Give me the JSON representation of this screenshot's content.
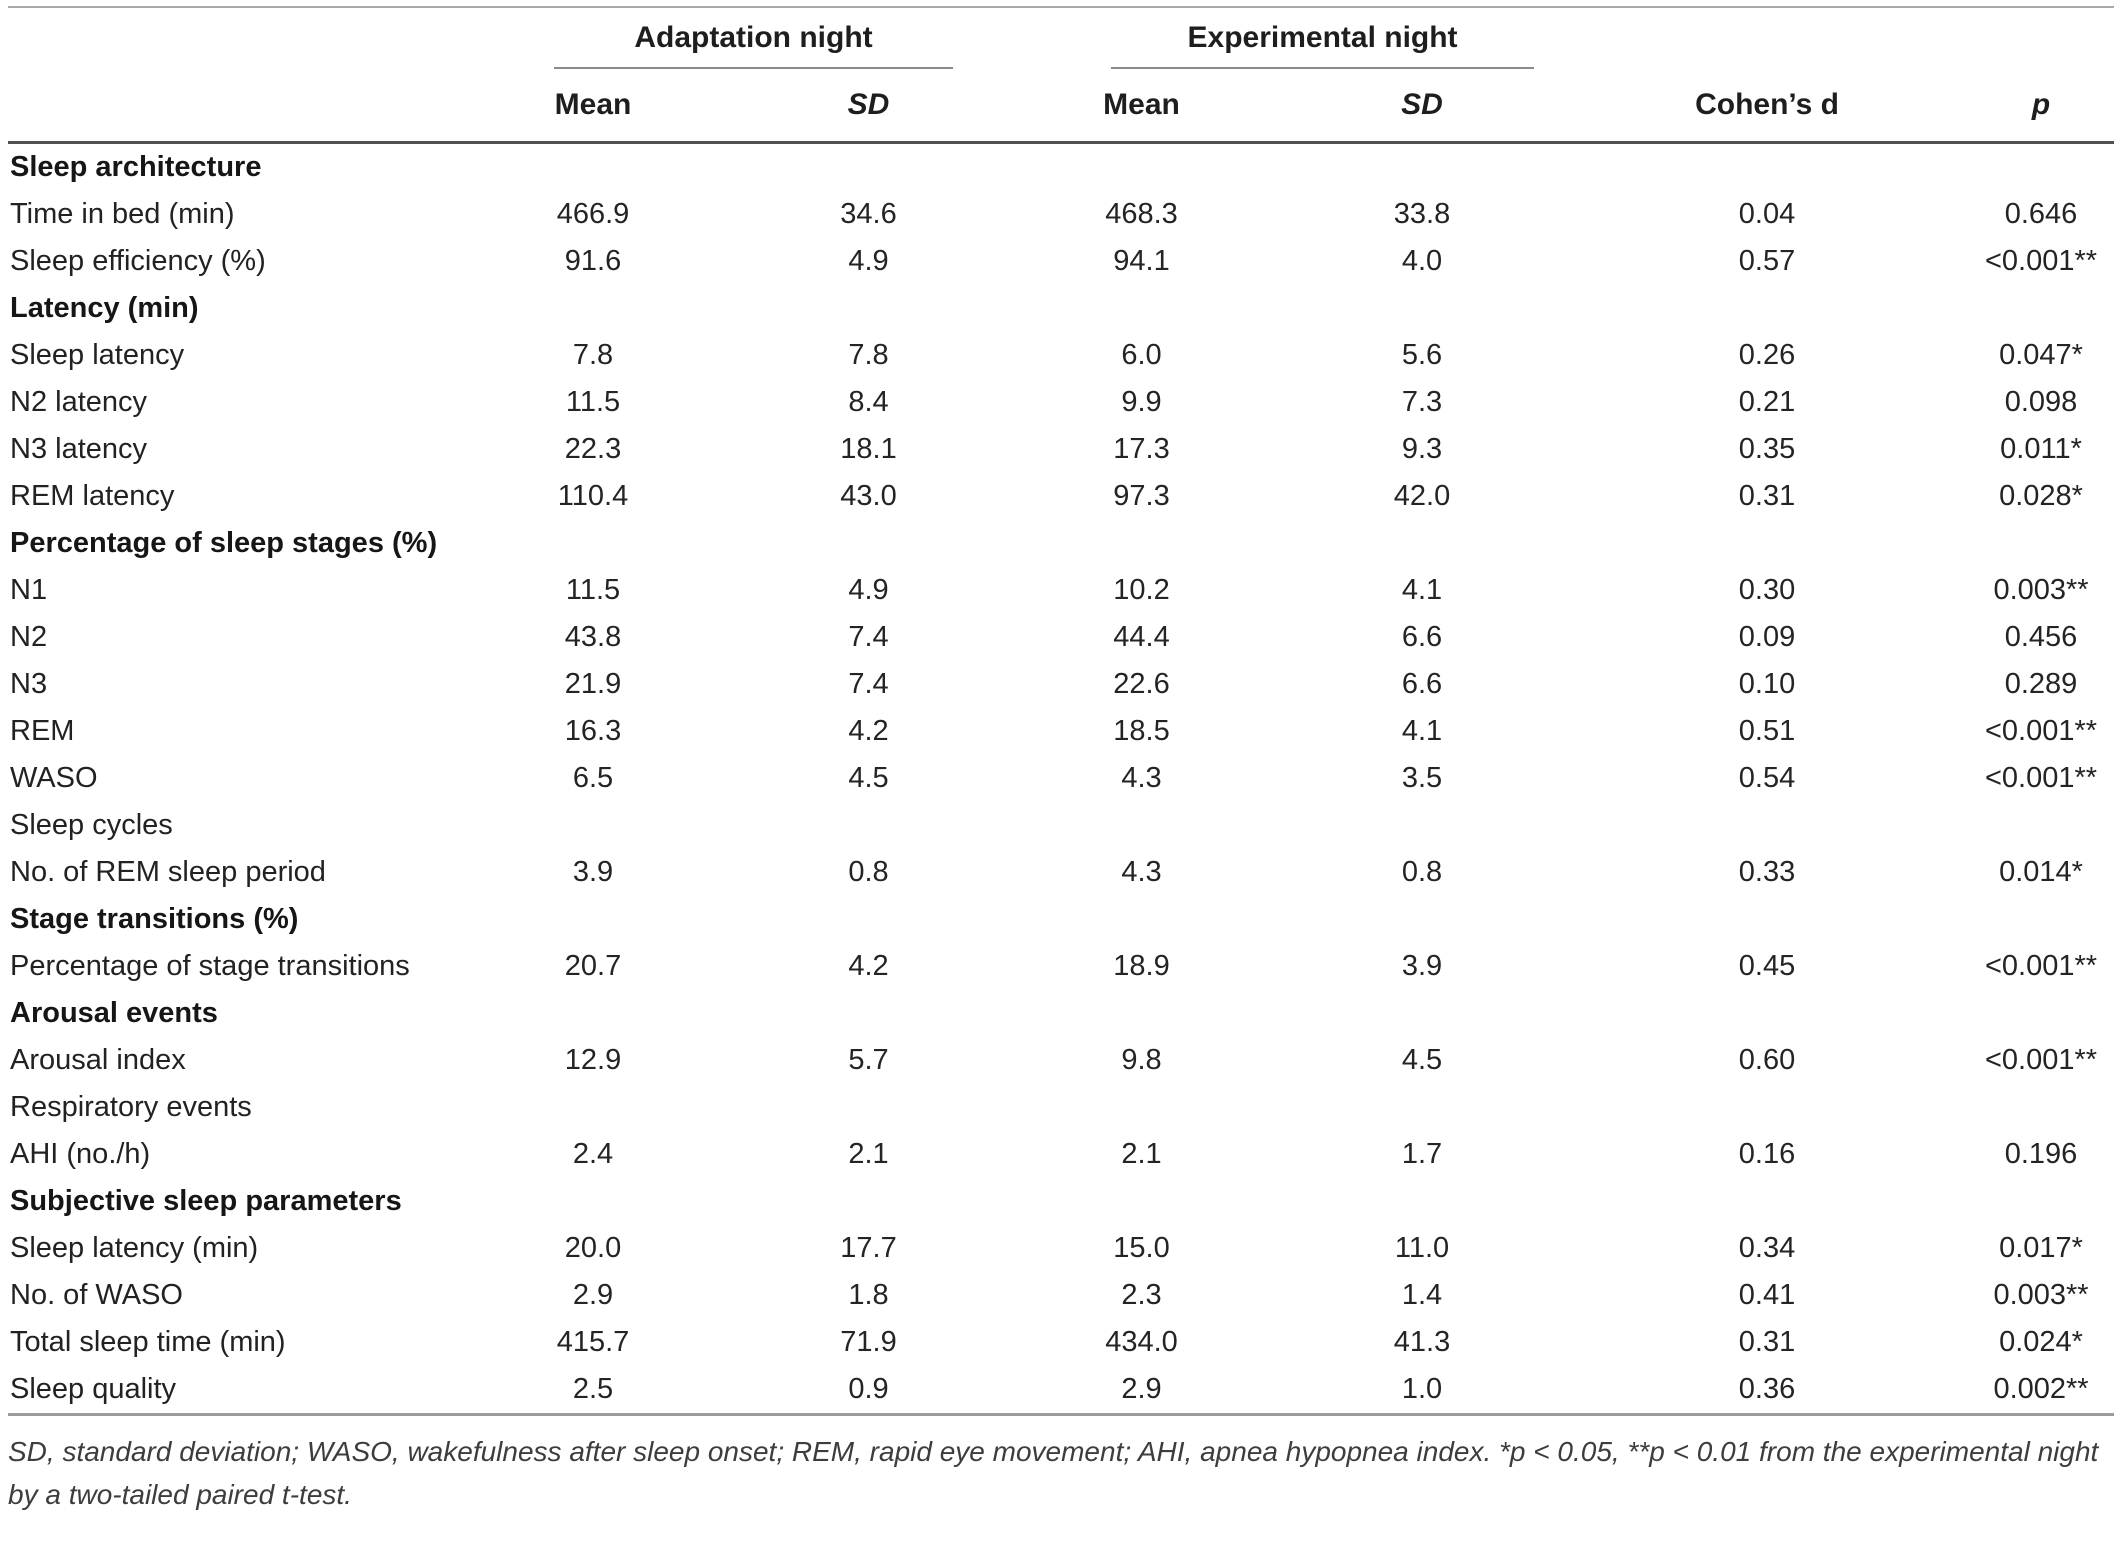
{
  "table": {
    "column_groups": [
      {
        "label": "Adaptation night"
      },
      {
        "label": "Experimental night"
      }
    ],
    "column_headers": {
      "mean_a": "Mean",
      "sd_a": "SD",
      "mean_e": "Mean",
      "sd_e": "SD",
      "cohens_d": "Cohen’s d",
      "p": "p"
    },
    "rows": [
      {
        "label": "Sleep architecture",
        "bold": true,
        "values": []
      },
      {
        "label": "Time in bed (min)",
        "bold": false,
        "values": [
          "466.9",
          "34.6",
          "468.3",
          "33.8",
          "0.04",
          "0.646"
        ]
      },
      {
        "label": "Sleep efficiency (%)",
        "bold": false,
        "values": [
          "91.6",
          "4.9",
          "94.1",
          "4.0",
          "0.57",
          "<0.001**"
        ]
      },
      {
        "label": "Latency (min)",
        "bold": true,
        "values": []
      },
      {
        "label": "Sleep latency",
        "bold": false,
        "values": [
          "7.8",
          "7.8",
          "6.0",
          "5.6",
          "0.26",
          "0.047*"
        ]
      },
      {
        "label": "N2 latency",
        "bold": false,
        "values": [
          "11.5",
          "8.4",
          "9.9",
          "7.3",
          "0.21",
          "0.098"
        ]
      },
      {
        "label": "N3 latency",
        "bold": false,
        "values": [
          "22.3",
          "18.1",
          "17.3",
          "9.3",
          "0.35",
          "0.011*"
        ]
      },
      {
        "label": "REM latency",
        "bold": false,
        "values": [
          "110.4",
          "43.0",
          "97.3",
          "42.0",
          "0.31",
          "0.028*"
        ]
      },
      {
        "label": "Percentage of sleep stages (%)",
        "bold": true,
        "values": []
      },
      {
        "label": "N1",
        "bold": false,
        "values": [
          "11.5",
          "4.9",
          "10.2",
          "4.1",
          "0.30",
          "0.003**"
        ]
      },
      {
        "label": "N2",
        "bold": false,
        "values": [
          "43.8",
          "7.4",
          "44.4",
          "6.6",
          "0.09",
          "0.456"
        ]
      },
      {
        "label": "N3",
        "bold": false,
        "values": [
          "21.9",
          "7.4",
          "22.6",
          "6.6",
          "0.10",
          "0.289"
        ]
      },
      {
        "label": "REM",
        "bold": false,
        "values": [
          "16.3",
          "4.2",
          "18.5",
          "4.1",
          "0.51",
          "<0.001**"
        ]
      },
      {
        "label": "WASO",
        "bold": false,
        "values": [
          "6.5",
          "4.5",
          "4.3",
          "3.5",
          "0.54",
          "<0.001**"
        ]
      },
      {
        "label": "Sleep cycles",
        "bold": false,
        "values": []
      },
      {
        "label": "No. of REM sleep period",
        "bold": false,
        "values": [
          "3.9",
          "0.8",
          "4.3",
          "0.8",
          "0.33",
          "0.014*"
        ]
      },
      {
        "label": "Stage transitions (%)",
        "bold": true,
        "values": []
      },
      {
        "label": "Percentage of stage transitions",
        "bold": false,
        "values": [
          "20.7",
          "4.2",
          "18.9",
          "3.9",
          "0.45",
          "<0.001**"
        ]
      },
      {
        "label": "Arousal events",
        "bold": true,
        "values": []
      },
      {
        "label": "Arousal index",
        "bold": false,
        "values": [
          "12.9",
          "5.7",
          "9.8",
          "4.5",
          "0.60",
          "<0.001**"
        ]
      },
      {
        "label": "Respiratory events",
        "bold": false,
        "values": []
      },
      {
        "label": "AHI (no./h)",
        "bold": false,
        "values": [
          "2.4",
          "2.1",
          "2.1",
          "1.7",
          "0.16",
          "0.196"
        ]
      },
      {
        "label": "Subjective sleep parameters",
        "bold": true,
        "values": []
      },
      {
        "label": "Sleep latency (min)",
        "bold": false,
        "values": [
          "20.0",
          "17.7",
          "15.0",
          "11.0",
          "0.34",
          "0.017*"
        ]
      },
      {
        "label": "No. of WASO",
        "bold": false,
        "values": [
          "2.9",
          "1.8",
          "2.3",
          "1.4",
          "0.41",
          "0.003**"
        ]
      },
      {
        "label": "Total sleep time (min)",
        "bold": false,
        "values": [
          "415.7",
          "71.9",
          "434.0",
          "41.3",
          "0.31",
          "0.024*"
        ]
      },
      {
        "label": "Sleep quality",
        "bold": false,
        "values": [
          "2.5",
          "0.9",
          "2.9",
          "1.0",
          "0.36",
          "0.002**"
        ]
      }
    ]
  },
  "footnote_lines": [
    "SD, standard deviation; WASO, wakefulness after sleep onset; REM, rapid eye movement; AHI, apnea hypopnea index. *p < 0.05, **p < 0.01 from the experimental night",
    "by a two-tailed paired t-test."
  ]
}
